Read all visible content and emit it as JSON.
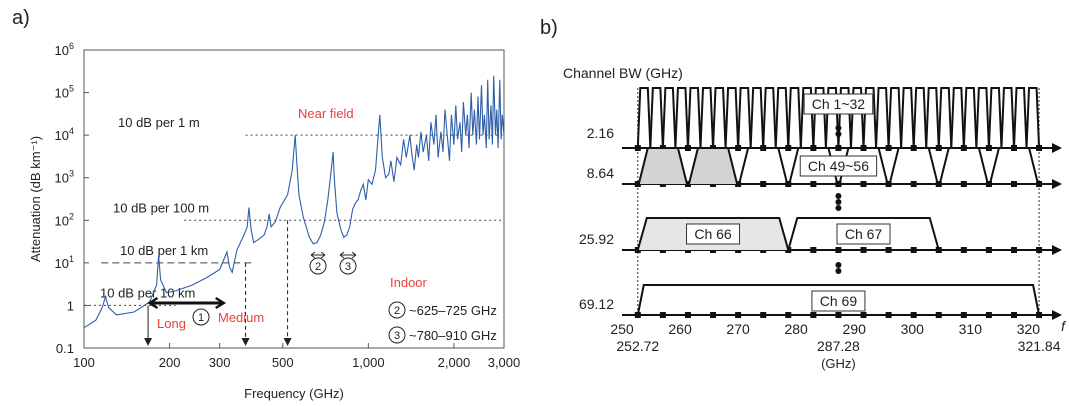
{
  "panels": {
    "a": "a)",
    "b": "b)"
  },
  "chart_data": [
    {
      "type": "line",
      "panel": "a",
      "xlabel": "Frequency (GHz)",
      "ylabel": "Attenuation (dB km⁻¹)",
      "xscale": "log",
      "yscale": "log",
      "xlim": [
        100,
        3000
      ],
      "ylim": [
        0.1,
        1000000
      ],
      "xticks": [
        {
          "v": 100,
          "label": "100"
        },
        {
          "v": 200,
          "label": "200"
        },
        {
          "v": 300,
          "label": "300"
        },
        {
          "v": 500,
          "label": "500"
        },
        {
          "v": 1000,
          "label": "1,000"
        },
        {
          "v": 2000,
          "label": "2,000"
        },
        {
          "v": 3000,
          "label": "3,000"
        }
      ],
      "yticks": [
        {
          "v": 0.1,
          "label": "0.1"
        },
        {
          "v": 1,
          "label": "1"
        },
        {
          "v": 10,
          "label": "10",
          "sup": "1"
        },
        {
          "v": 100,
          "label": "10",
          "sup": "2"
        },
        {
          "v": 1000,
          "label": "10",
          "sup": "3"
        },
        {
          "v": 10000,
          "label": "10",
          "sup": "4"
        },
        {
          "v": 100000,
          "label": "10",
          "sup": "5"
        },
        {
          "v": 1000000,
          "label": "10",
          "sup": "6"
        }
      ],
      "series_color": "#2f5fa8",
      "series": [
        {
          "x": [
            100,
            110,
            116,
            119,
            122,
            130,
            150,
            170,
            180,
            183,
            186,
            195,
            210,
            240,
            270,
            300,
            318,
            325,
            332,
            345,
            355,
            365,
            375,
            380,
            387,
            395,
            410,
            430,
            440,
            448,
            455,
            470,
            490,
            520,
            540,
            553,
            560,
            570,
            590,
            620,
            640,
            660,
            680,
            700,
            720,
            740,
            752,
            760,
            775,
            800,
            820,
            840,
            860,
            880,
            900,
            920,
            940,
            960,
            980,
            1000,
            1030,
            1060,
            1097,
            1120,
            1150,
            1180,
            1200,
            1230,
            1260,
            1300,
            1330,
            1360,
            1400,
            1420,
            1450,
            1480,
            1500,
            1530,
            1560,
            1600,
            1630,
            1660,
            1700,
            1730,
            1760,
            1800,
            1830,
            1860,
            1900,
            1930,
            1960,
            2000,
            2030,
            2060,
            2100,
            2130,
            2160,
            2200,
            2230,
            2260,
            2300,
            2330,
            2360,
            2400,
            2430,
            2460,
            2500,
            2530,
            2560,
            2600,
            2630,
            2660,
            2700,
            2730,
            2760,
            2800,
            2830,
            2860,
            2900,
            2930,
            2960,
            3000
          ],
          "y": [
            0.3,
            0.45,
            0.9,
            1.6,
            0.9,
            0.6,
            0.7,
            1.2,
            3,
            15,
            4,
            2,
            2.2,
            3,
            4.5,
            7,
            18,
            8,
            6,
            20,
            30,
            45,
            70,
            200,
            60,
            30,
            35,
            45,
            70,
            140,
            70,
            90,
            200,
            400,
            1500,
            10000,
            2500,
            400,
            120,
            40,
            28,
            30,
            45,
            90,
            300,
            1500,
            4000,
            900,
            150,
            60,
            40,
            45,
            70,
            180,
            250,
            300,
            500,
            700,
            300,
            900,
            700,
            1500,
            30000,
            3000,
            1000,
            1200,
            2500,
            800,
            3000,
            2000,
            8000,
            3000,
            10000,
            4000,
            1500,
            6000,
            3000,
            12000,
            4000,
            10000,
            2500,
            20000,
            6000,
            30000,
            3000,
            12000,
            4000,
            40000,
            8000,
            2500,
            30000,
            6000,
            50000,
            8000,
            20000,
            4000,
            60000,
            10000,
            30000,
            5000,
            100000,
            10000,
            40000,
            6000,
            80000,
            8000,
            150000,
            10000,
            30000,
            5000,
            200000,
            8000,
            50000,
            6000,
            250000,
            10000,
            40000,
            5000,
            200000,
            8000,
            30000,
            10000
          ]
        }
      ],
      "reference_lines": [
        {
          "label": "10 dB per 1 m",
          "y": 10000,
          "x_from": 370,
          "x_to": 3000
        },
        {
          "label": "10 dB per 100 m",
          "y": 100,
          "x_from": 225,
          "x_to": 3000
        },
        {
          "label": "10 dB per 1 km",
          "y": 10,
          "x_from": 115,
          "x_to": 400
        },
        {
          "label": "10 dB per 10 km",
          "y": 1,
          "x_from": 100,
          "x_to": 210
        }
      ],
      "arrows_down": [
        168,
        370,
        520
      ],
      "annotations": [
        {
          "text": "Near field",
          "color": "#e8413c"
        },
        {
          "text": "Indoor",
          "color": "#e8413c"
        },
        {
          "text": "Medium",
          "color": "#e8413c"
        },
        {
          "text": "Long",
          "color": "#e8413c"
        }
      ],
      "markers": [
        "1",
        "2",
        "3"
      ],
      "legend_notes": [
        {
          "marker": "2",
          "text": "~625–725 GHz"
        },
        {
          "marker": "3",
          "text": "~780–910 GHz"
        }
      ]
    },
    {
      "type": "diagram",
      "panel": "b",
      "title": "Channel BW (GHz)",
      "xlim": [
        250,
        322
      ],
      "axis_label": "f",
      "ticks": [
        250,
        260,
        270,
        280,
        290,
        300,
        310,
        320
      ],
      "sub_ticks": [
        {
          "v": 252.72,
          "label": "252.72"
        },
        {
          "v": 287.28,
          "label": "287.28"
        },
        {
          "v": 321.84,
          "label": "321.84"
        }
      ],
      "unit": "(GHz)",
      "rows": [
        {
          "bw": "2.16",
          "label": "Ch 1~32",
          "count": 32,
          "start": 252.72,
          "width": 2.16
        },
        {
          "bw": "8.64",
          "label": "Ch 49~56",
          "count": 8,
          "start": 252.72,
          "width": 8.64,
          "shaded": [
            0,
            1
          ]
        },
        {
          "bw": "25.92",
          "label": "Ch 66",
          "count": 1,
          "start": 252.72,
          "width": 25.92,
          "shaded": [
            0
          ]
        },
        {
          "bw": "25.92",
          "label": "Ch 67",
          "count": 1,
          "start": 278.64,
          "width": 25.92,
          "hide_bw": true
        },
        {
          "bw": "69.12",
          "label": "Ch 69",
          "count": 1,
          "start": 252.72,
          "width": 69.12
        }
      ]
    }
  ]
}
